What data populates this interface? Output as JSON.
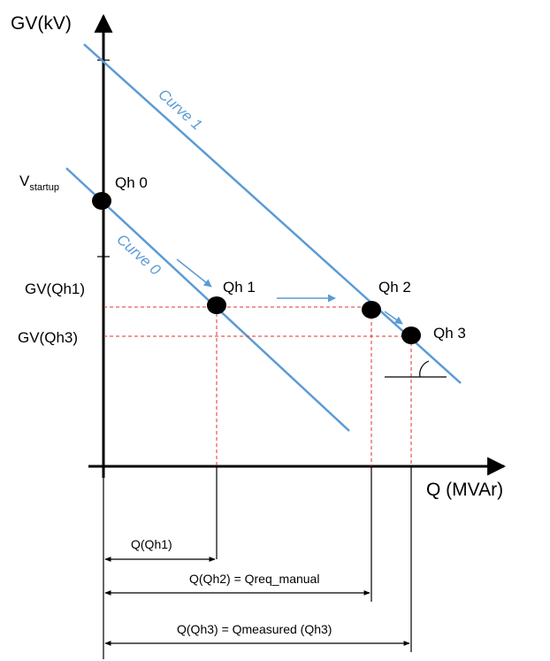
{
  "axes": {
    "y_label": "GV(kV)",
    "x_label": "Q (MVAr)"
  },
  "y_ticks": {
    "v_startup_main": "V",
    "v_startup_sub": "startup",
    "gv_qh1": "GV(Qh1)",
    "gv_qh3": "GV(Qh3)"
  },
  "curves": {
    "curve1": "Curve 1",
    "curve0": "Curve 0"
  },
  "points": {
    "qh0": "Qh 0",
    "qh1": "Qh 1",
    "qh2": "Qh 2",
    "qh3": "Qh 3"
  },
  "dimensions": {
    "q_qh1": "Q(Qh1)",
    "q_qh2": "Q(Qh2) = Qreq_manual",
    "q_qh3": "Q(Qh3) = Qmeasured (Qh3)"
  },
  "colors": {
    "curve": "#5b9bd5",
    "dashed": "#e03030",
    "axis": "#000000"
  }
}
